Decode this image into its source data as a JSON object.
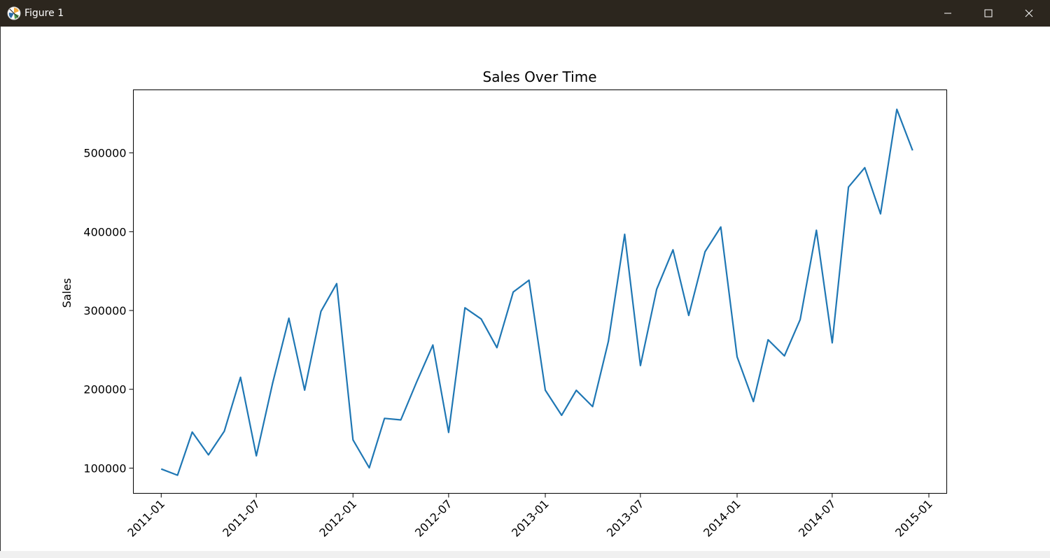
{
  "window": {
    "title": "Figure 1",
    "icon": "matplotlib-icon",
    "controls": [
      "minimize-icon",
      "maximize-icon",
      "close-icon"
    ]
  },
  "chart_data": {
    "type": "line",
    "title": "Sales Over Time",
    "xlabel": "",
    "ylabel": "Sales",
    "grid": false,
    "legend": "none",
    "line_color": "#1f77b4",
    "x_ticks": [
      "2011-01",
      "2011-07",
      "2012-01",
      "2012-07",
      "2013-01",
      "2013-07",
      "2014-01",
      "2014-07",
      "2015-01"
    ],
    "y_ticks": [
      "100000",
      "200000",
      "300000",
      "400000",
      "500000"
    ],
    "ylim": [
      68000,
      580000
    ],
    "xlim": [
      "2010-11-09",
      "2015-02-04"
    ],
    "x": [
      "2011-01",
      "2011-02",
      "2011-03",
      "2011-04",
      "2011-05",
      "2011-06",
      "2011-07",
      "2011-08",
      "2011-09",
      "2011-10",
      "2011-11",
      "2011-12",
      "2012-01",
      "2012-02",
      "2012-03",
      "2012-04",
      "2012-05",
      "2012-06",
      "2012-07",
      "2012-08",
      "2012-09",
      "2012-10",
      "2012-11",
      "2012-12",
      "2013-01",
      "2013-02",
      "2013-03",
      "2013-04",
      "2013-05",
      "2013-06",
      "2013-07",
      "2013-08",
      "2013-09",
      "2013-10",
      "2013-11",
      "2013-12",
      "2014-01",
      "2014-02",
      "2014-03",
      "2014-04",
      "2014-05",
      "2014-06",
      "2014-07",
      "2014-08",
      "2014-09",
      "2014-10",
      "2014-11",
      "2014-12"
    ],
    "series": [
      {
        "values": [
          98900,
          91000,
          145700,
          116800,
          146700,
          215200,
          115600,
          207600,
          290200,
          199000,
          298900,
          334100,
          135800,
          100400,
          163100,
          161200,
          209100,
          256200,
          145300,
          303400,
          289200,
          252800,
          323500,
          338500,
          198900,
          167000,
          198700,
          178000,
          260700,
          396700,
          230100,
          326900,
          377000,
          293700,
          374600,
          406000,
          241300,
          184500,
          262900,
          242400,
          288400,
          401800,
          259000,
          456600,
          481200,
          422700,
          555300,
          503200
        ]
      }
    ]
  }
}
